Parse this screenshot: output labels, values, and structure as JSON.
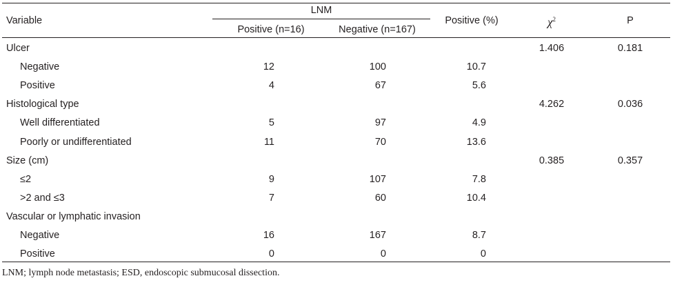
{
  "header": {
    "variable": "Variable",
    "lnm": "LNM",
    "positive_n": "Positive (n=16)",
    "negative_n": "Negative (n=167)",
    "positive_pct": "Positive (%)",
    "chi_symbol": "χ",
    "chi_exp": "2",
    "p": "P"
  },
  "rows": [
    {
      "label": "Ulcer",
      "indent": false,
      "pos": "",
      "neg": "",
      "pct": "",
      "chi": "1.406",
      "p": "0.181"
    },
    {
      "label": "Negative",
      "indent": true,
      "pos": "12",
      "neg": "100",
      "pct": "10.7",
      "chi": "",
      "p": ""
    },
    {
      "label": "Positive",
      "indent": true,
      "pos": "4",
      "neg": "67",
      "pct": "5.6",
      "chi": "",
      "p": ""
    },
    {
      "label": "Histological type",
      "indent": false,
      "pos": "",
      "neg": "",
      "pct": "",
      "chi": "4.262",
      "p": "0.036"
    },
    {
      "label": "Well differentiated",
      "indent": true,
      "pos": "5",
      "neg": "97",
      "pct": "4.9",
      "chi": "",
      "p": ""
    },
    {
      "label": "Poorly or undifferentiated",
      "indent": true,
      "pos": "11",
      "neg": "70",
      "pct": "13.6",
      "chi": "",
      "p": ""
    },
    {
      "label": "Size (cm)",
      "indent": false,
      "pos": "",
      "neg": "",
      "pct": "",
      "chi": "0.385",
      "p": "0.357"
    },
    {
      "label": "≤2",
      "indent": true,
      "pos": "9",
      "neg": "107",
      "pct": "7.8",
      "chi": "",
      "p": ""
    },
    {
      "label": ">2 and ≤3",
      "indent": true,
      "pos": "7",
      "neg": "60",
      "pct": "10.4",
      "chi": "",
      "p": ""
    },
    {
      "label": "Vascular or lymphatic invasion",
      "indent": false,
      "pos": "",
      "neg": "",
      "pct": "",
      "chi": "",
      "p": ""
    },
    {
      "label": "Negative",
      "indent": true,
      "pos": "16",
      "neg": "167",
      "pct": "8.7",
      "chi": "",
      "p": ""
    },
    {
      "label": "Positive",
      "indent": true,
      "pos": "0",
      "neg": "0",
      "pct": "0",
      "chi": "",
      "p": ""
    }
  ],
  "footnote": "LNM; lymph node metastasis; ESD, endoscopic submucosal dissection."
}
